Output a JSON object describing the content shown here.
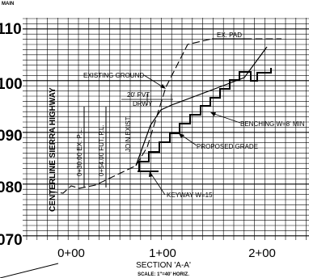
{
  "header_label": "MAIN",
  "elevation_labels": [
    "110",
    "100",
    "090",
    "080",
    "070"
  ],
  "station_labels": [
    "0+00",
    "1+00",
    "2+00"
  ],
  "callouts": {
    "ex_pad": "EX. PAD",
    "existing_ground": "EXISTING GROUND",
    "pvt": "20' PVT",
    "drwy": "DRWY",
    "benching": "BENCHING W=8' MIN",
    "proposed_grade": "PROPOSED GRADE",
    "keyway": "KEYWAY W=15'"
  },
  "vertical_notes": {
    "ex_pl": "0+30.00 EX. P.L.",
    "fut_pl": "0+54.00 FUT. P.L.",
    "join_exist": "JOIN EXIST."
  },
  "centerline_label": "CENTERLINE SIERRA HIGHWAY",
  "section_title": "SECTION 'A-A'",
  "scale_text": "SCALE: 1\"=40' HORIZ."
}
